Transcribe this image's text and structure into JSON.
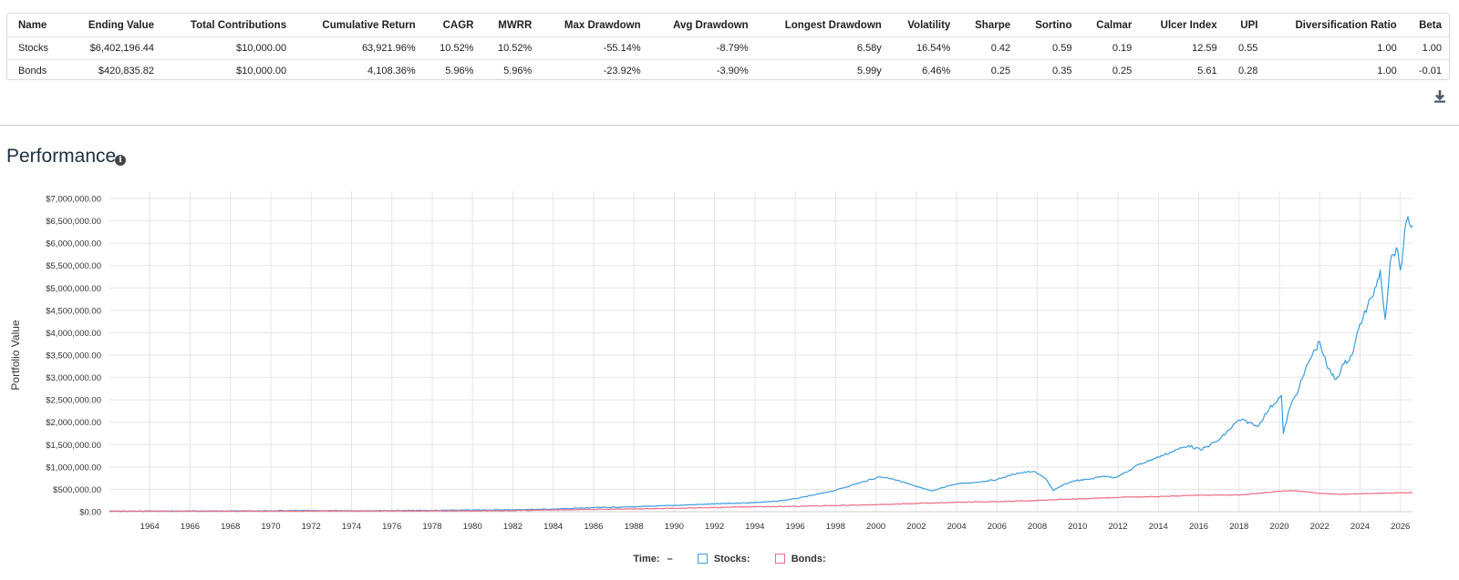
{
  "stats_table": {
    "headers": [
      "Name",
      "Ending Value",
      "Total Contributions",
      "Cumulative Return",
      "CAGR",
      "MWRR",
      "Max Drawdown",
      "Avg Drawdown",
      "Longest Drawdown",
      "Volatility",
      "Sharpe",
      "Sortino",
      "Calmar",
      "Ulcer Index",
      "UPI",
      "Diversification Ratio",
      "Beta"
    ],
    "rows": [
      [
        "Stocks",
        "$6,402,196.44",
        "$10,000.00",
        "63,921.96%",
        "10.52%",
        "10.52%",
        "-55.14%",
        "-8.79%",
        "6.58y",
        "16.54%",
        "0.42",
        "0.59",
        "0.19",
        "12.59",
        "0.55",
        "1.00",
        "1.00"
      ],
      [
        "Bonds",
        "$420,835.82",
        "$10,000.00",
        "4,108.36%",
        "5.96%",
        "5.96%",
        "-23.92%",
        "-3.90%",
        "5.99y",
        "6.46%",
        "0.25",
        "0.35",
        "0.25",
        "5.61",
        "0.28",
        "1.00",
        "-0.01"
      ]
    ]
  },
  "download_icon": "download-icon",
  "section": {
    "title": "Performance",
    "info_icon": "info-icon",
    "info_glyph": "i"
  },
  "legend": {
    "time_label": "Time:",
    "time_value": "–",
    "items": [
      {
        "label": "Stocks:",
        "color": "#3b9de0"
      },
      {
        "label": "Bonds:",
        "color": "#ef6b86"
      }
    ]
  },
  "chart_data": {
    "type": "line",
    "title": "",
    "xlabel": "",
    "ylabel": "Portfolio Value",
    "xlim": [
      1962.0,
      2026.6
    ],
    "ylim": [
      0,
      7000000
    ],
    "yticks": [
      0,
      500000,
      1000000,
      1500000,
      2000000,
      2500000,
      3000000,
      3500000,
      4000000,
      4500000,
      5000000,
      5500000,
      6000000,
      6500000,
      7000000
    ],
    "ytick_labels": [
      "$0.00",
      "$500,000.00",
      "$1,000,000.00",
      "$1,500,000.00",
      "$2,000,000.00",
      "$2,500,000.00",
      "$3,000,000.00",
      "$3,500,000.00",
      "$4,000,000.00",
      "$4,500,000.00",
      "$5,000,000.00",
      "$5,500,000.00",
      "$6,000,000.00",
      "$6,500,000.00",
      "$7,000,000.00"
    ],
    "xticks": [
      1964,
      1966,
      1968,
      1970,
      1972,
      1974,
      1976,
      1978,
      1980,
      1982,
      1984,
      1986,
      1988,
      1990,
      1992,
      1994,
      1996,
      1998,
      2000,
      2002,
      2004,
      2006,
      2008,
      2010,
      2012,
      2014,
      2016,
      2018,
      2020,
      2022,
      2024,
      2026
    ],
    "grid": true,
    "legend_position": "bottom",
    "series": [
      {
        "name": "Stocks",
        "color": "#3b9de0",
        "x": [
          1962.0,
          1964,
          1966,
          1968,
          1970,
          1972,
          1974,
          1976,
          1978,
          1980,
          1982,
          1984,
          1986,
          1988,
          1990,
          1992,
          1994,
          1995,
          1996,
          1997,
          1998,
          1999,
          2000.2,
          2000.8,
          2001.5,
          2002.0,
          2002.8,
          2003.5,
          2004,
          2005,
          2006,
          2007,
          2007.8,
          2008.4,
          2008.8,
          2009.2,
          2009.8,
          2010.5,
          2011.3,
          2011.8,
          2012.5,
          2013,
          2014,
          2015,
          2015.5,
          2016.1,
          2017,
          2018.0,
          2018.5,
          2018.9,
          2019.5,
          2020.1,
          2020.2,
          2020.5,
          2021,
          2021.5,
          2022.0,
          2022.4,
          2022.8,
          2023.2,
          2023.6,
          2024.0,
          2024.6,
          2025.0,
          2025.25,
          2025.5,
          2025.8,
          2026.0,
          2026.3,
          2026.6
        ],
        "values": [
          10000,
          12000,
          14000,
          16000,
          20000,
          24000,
          20000,
          25000,
          28000,
          37000,
          44000,
          58000,
          90000,
          110000,
          140000,
          175000,
          205000,
          230000,
          290000,
          380000,
          480000,
          620000,
          780000,
          740000,
          640000,
          560000,
          460000,
          570000,
          620000,
          660000,
          720000,
          860000,
          900000,
          750000,
          470000,
          580000,
          690000,
          720000,
          800000,
          760000,
          900000,
          1050000,
          1220000,
          1400000,
          1480000,
          1380000,
          1600000,
          2050000,
          2000000,
          1900000,
          2300000,
          2600000,
          1750000,
          2300000,
          2800000,
          3400000,
          3800000,
          3200000,
          2950000,
          3300000,
          3500000,
          4200000,
          4800000,
          5400000,
          4300000,
          5600000,
          5900000,
          5400000,
          6500000,
          6400000
        ]
      },
      {
        "name": "Bonds",
        "color": "#ef6b86",
        "x": [
          1962.0,
          1966,
          1970,
          1974,
          1978,
          1980,
          1982,
          1984,
          1986,
          1988,
          1990,
          1992,
          1994,
          1996,
          1998,
          2000,
          2002,
          2004,
          2006,
          2008,
          2009,
          2010,
          2012,
          2014,
          2016,
          2018,
          2019,
          2020.3,
          2021,
          2022,
          2023,
          2024,
          2025,
          2026,
          2026.6
        ],
        "values": [
          10000,
          11000,
          13000,
          15000,
          18000,
          20000,
          25000,
          38000,
          52000,
          62000,
          76000,
          95000,
          110000,
          120000,
          140000,
          155000,
          185000,
          210000,
          225000,
          250000,
          275000,
          285000,
          320000,
          340000,
          370000,
          375000,
          410000,
          470000,
          460000,
          410000,
          390000,
          400000,
          410000,
          420000,
          421000
        ]
      }
    ]
  }
}
